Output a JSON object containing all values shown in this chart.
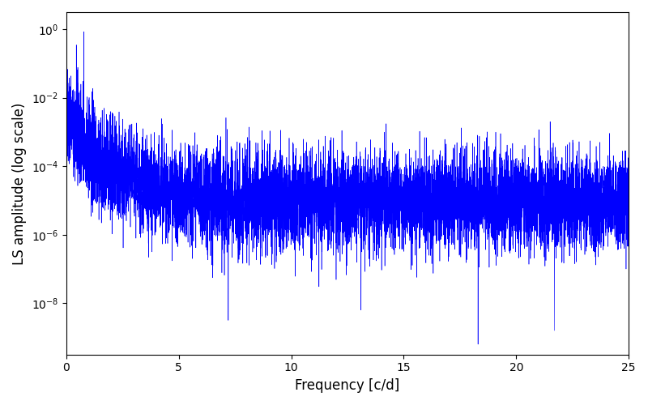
{
  "xlabel": "Frequency [c/d]",
  "ylabel": "LS amplitude (log scale)",
  "line_color": "#0000ff",
  "xlim": [
    0,
    25
  ],
  "ylim_log": [
    -9.5,
    0.5
  ],
  "freq_min": 0.005,
  "freq_max": 25.0,
  "n_points": 8000,
  "seed": 137,
  "background_color": "#ffffff",
  "figsize": [
    8.0,
    5.0
  ],
  "dpi": 100,
  "linewidth": 0.4
}
